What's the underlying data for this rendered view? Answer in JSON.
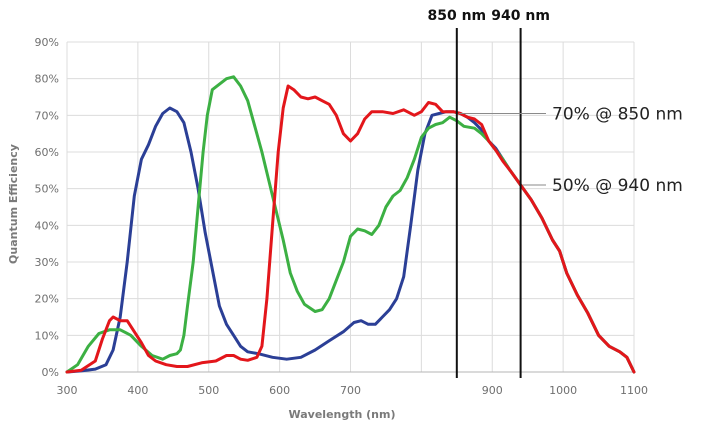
{
  "chart_data": {
    "type": "line",
    "xlabel": "Wavelength (nm)",
    "ylabel": "Quantum Efficiency",
    "xlim": [
      300,
      1100
    ],
    "ylim": [
      0,
      90
    ],
    "grid": true,
    "x_ticks": [
      300,
      400,
      500,
      600,
      700,
      900,
      1000,
      1100
    ],
    "y_ticks": [
      "0%",
      "10%",
      "20%",
      "30%",
      "40%",
      "50%",
      "60%",
      "70%",
      "80%",
      "90%"
    ],
    "y_tick_values": [
      0,
      10,
      20,
      30,
      40,
      50,
      60,
      70,
      80,
      90
    ],
    "colors": {
      "blue": "#2b3f96",
      "green": "#3cb043",
      "red": "#e3161b",
      "marker": "#111111",
      "grid": "#dcdcdc"
    },
    "markers": [
      {
        "x": 850,
        "label": "850 nm"
      },
      {
        "x": 940,
        "label": "940 nm"
      }
    ],
    "annotations": [
      {
        "text": "70% @ 850 nm",
        "x": 850,
        "y": 70.5
      },
      {
        "text": "50% @ 940 nm",
        "x": 940,
        "y": 51
      }
    ],
    "series": [
      {
        "color": "#2b3f96",
        "points": [
          [
            300,
            0
          ],
          [
            320,
            0.3
          ],
          [
            340,
            0.8
          ],
          [
            355,
            2
          ],
          [
            365,
            6
          ],
          [
            375,
            15
          ],
          [
            385,
            30
          ],
          [
            395,
            48
          ],
          [
            405,
            58
          ],
          [
            415,
            62
          ],
          [
            425,
            67
          ],
          [
            435,
            70.5
          ],
          [
            445,
            72
          ],
          [
            455,
            71
          ],
          [
            465,
            68
          ],
          [
            475,
            60
          ],
          [
            485,
            50
          ],
          [
            495,
            38
          ],
          [
            505,
            28
          ],
          [
            515,
            18
          ],
          [
            525,
            13
          ],
          [
            535,
            10
          ],
          [
            545,
            7
          ],
          [
            555,
            5.5
          ],
          [
            570,
            5
          ],
          [
            590,
            4
          ],
          [
            610,
            3.5
          ],
          [
            630,
            4
          ],
          [
            650,
            6
          ],
          [
            670,
            8.5
          ],
          [
            690,
            11
          ],
          [
            705,
            13.5
          ],
          [
            715,
            14
          ],
          [
            725,
            13
          ],
          [
            735,
            13
          ],
          [
            745,
            15
          ],
          [
            755,
            17
          ],
          [
            765,
            20
          ],
          [
            775,
            26
          ],
          [
            785,
            40
          ],
          [
            795,
            55
          ],
          [
            805,
            65
          ],
          [
            815,
            70
          ],
          [
            825,
            70.5
          ],
          [
            835,
            71
          ],
          [
            845,
            71
          ],
          [
            855,
            70.5
          ],
          [
            865,
            69.5
          ],
          [
            875,
            68
          ],
          [
            885,
            66
          ],
          [
            895,
            63
          ],
          [
            905,
            61
          ],
          [
            915,
            58
          ],
          [
            925,
            55
          ],
          [
            940,
            51
          ],
          [
            955,
            47
          ],
          [
            970,
            42
          ],
          [
            985,
            36
          ],
          [
            995,
            33
          ],
          [
            1005,
            27
          ],
          [
            1020,
            21
          ],
          [
            1035,
            16
          ],
          [
            1050,
            10
          ],
          [
            1065,
            7
          ],
          [
            1080,
            5.5
          ],
          [
            1090,
            4
          ],
          [
            1100,
            0
          ]
        ]
      },
      {
        "color": "#3cb043",
        "points": [
          [
            300,
            0
          ],
          [
            315,
            2
          ],
          [
            330,
            7
          ],
          [
            345,
            10.5
          ],
          [
            360,
            11.5
          ],
          [
            375,
            11.5
          ],
          [
            390,
            10
          ],
          [
            405,
            7
          ],
          [
            420,
            4.5
          ],
          [
            435,
            3.5
          ],
          [
            445,
            4.5
          ],
          [
            455,
            5
          ],
          [
            460,
            6
          ],
          [
            465,
            10
          ],
          [
            470,
            18
          ],
          [
            478,
            30
          ],
          [
            485,
            45
          ],
          [
            492,
            60
          ],
          [
            498,
            70
          ],
          [
            505,
            77
          ],
          [
            515,
            78.5
          ],
          [
            525,
            80
          ],
          [
            535,
            80.5
          ],
          [
            545,
            78
          ],
          [
            555,
            74
          ],
          [
            565,
            67
          ],
          [
            575,
            60
          ],
          [
            585,
            52
          ],
          [
            595,
            44
          ],
          [
            605,
            36
          ],
          [
            615,
            27
          ],
          [
            625,
            22
          ],
          [
            635,
            18.5
          ],
          [
            650,
            16.5
          ],
          [
            660,
            17
          ],
          [
            670,
            20
          ],
          [
            680,
            25
          ],
          [
            690,
            30
          ],
          [
            700,
            37
          ],
          [
            710,
            39
          ],
          [
            720,
            38.5
          ],
          [
            730,
            37.5
          ],
          [
            740,
            40
          ],
          [
            750,
            45
          ],
          [
            760,
            48
          ],
          [
            770,
            49.5
          ],
          [
            780,
            53
          ],
          [
            790,
            58
          ],
          [
            800,
            64
          ],
          [
            810,
            66.5
          ],
          [
            820,
            67.5
          ],
          [
            830,
            68
          ],
          [
            840,
            69.5
          ],
          [
            850,
            68.5
          ],
          [
            860,
            67
          ],
          [
            875,
            66.5
          ],
          [
            885,
            65
          ],
          [
            895,
            63
          ],
          [
            905,
            60.5
          ],
          [
            915,
            58
          ],
          [
            925,
            55
          ],
          [
            940,
            51
          ],
          [
            955,
            47
          ],
          [
            970,
            42
          ],
          [
            985,
            36
          ],
          [
            995,
            33
          ],
          [
            1005,
            27
          ],
          [
            1020,
            21
          ],
          [
            1035,
            16
          ],
          [
            1050,
            10
          ],
          [
            1065,
            7
          ],
          [
            1080,
            5.5
          ],
          [
            1090,
            4
          ],
          [
            1100,
            0
          ]
        ]
      },
      {
        "color": "#e3161b",
        "points": [
          [
            300,
            0
          ],
          [
            320,
            0.5
          ],
          [
            340,
            3
          ],
          [
            350,
            9
          ],
          [
            360,
            14
          ],
          [
            365,
            15
          ],
          [
            375,
            14
          ],
          [
            385,
            14
          ],
          [
            395,
            11
          ],
          [
            405,
            8
          ],
          [
            415,
            4.5
          ],
          [
            425,
            3
          ],
          [
            440,
            2
          ],
          [
            455,
            1.5
          ],
          [
            470,
            1.5
          ],
          [
            490,
            2.5
          ],
          [
            510,
            3
          ],
          [
            525,
            4.5
          ],
          [
            535,
            4.5
          ],
          [
            545,
            3.5
          ],
          [
            555,
            3.2
          ],
          [
            568,
            4
          ],
          [
            575,
            7
          ],
          [
            582,
            20
          ],
          [
            590,
            40
          ],
          [
            598,
            60
          ],
          [
            605,
            72
          ],
          [
            612,
            78
          ],
          [
            620,
            77
          ],
          [
            630,
            75
          ],
          [
            640,
            74.5
          ],
          [
            650,
            75
          ],
          [
            660,
            74
          ],
          [
            670,
            73
          ],
          [
            680,
            70
          ],
          [
            690,
            65
          ],
          [
            700,
            63
          ],
          [
            710,
            65
          ],
          [
            720,
            69
          ],
          [
            730,
            71
          ],
          [
            745,
            71
          ],
          [
            760,
            70.5
          ],
          [
            775,
            71.5
          ],
          [
            790,
            70
          ],
          [
            800,
            71
          ],
          [
            810,
            73.5
          ],
          [
            820,
            73
          ],
          [
            830,
            71
          ],
          [
            845,
            71
          ],
          [
            855,
            70.5
          ],
          [
            865,
            69.5
          ],
          [
            875,
            69
          ],
          [
            885,
            67.5
          ],
          [
            895,
            63
          ],
          [
            905,
            60.5
          ],
          [
            915,
            57.5
          ],
          [
            925,
            55
          ],
          [
            940,
            51
          ],
          [
            955,
            47
          ],
          [
            970,
            42
          ],
          [
            985,
            36
          ],
          [
            995,
            33
          ],
          [
            1005,
            27
          ],
          [
            1020,
            21
          ],
          [
            1035,
            16
          ],
          [
            1050,
            10
          ],
          [
            1065,
            7
          ],
          [
            1080,
            5.5
          ],
          [
            1090,
            4
          ],
          [
            1100,
            0
          ]
        ]
      }
    ]
  }
}
